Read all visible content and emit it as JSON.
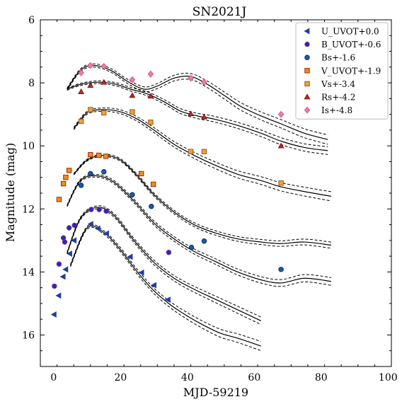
{
  "chart_data": {
    "type": "scatter",
    "title": "SN2021J",
    "xlabel": "MJD-59219",
    "ylabel": "Magnitude (mag)",
    "xlim": [
      -4,
      101
    ],
    "ylim": [
      17.0,
      6.0
    ],
    "y_inverted": true,
    "x_ticks": [
      0,
      20,
      40,
      60,
      80,
      100
    ],
    "y_ticks": [
      6,
      8,
      10,
      12,
      14,
      16
    ],
    "grid": false,
    "legend_position": "top-right",
    "series": [
      {
        "name": "U_UVOT+0.0",
        "marker": "triangle-left",
        "color": "#1f3f9f",
        "points": [
          [
            0.1,
            15.35
          ],
          [
            1.5,
            14.75
          ],
          [
            2.8,
            14.15
          ],
          [
            3.6,
            13.92
          ],
          [
            4.8,
            13.42
          ],
          [
            6.1,
            13.0
          ],
          [
            11.1,
            12.48
          ],
          [
            13.2,
            12.62
          ],
          [
            15.8,
            12.78
          ],
          [
            22.9,
            13.52
          ],
          [
            26.3,
            14.02
          ],
          [
            30.0,
            14.42
          ],
          [
            34.2,
            14.88
          ]
        ],
        "fit": {
          "x": [
            5,
            10,
            15,
            20,
            25,
            30,
            35,
            40,
            45,
            50,
            55,
            62
          ],
          "y": [
            13.8,
            12.6,
            12.75,
            13.3,
            14.0,
            14.6,
            15.05,
            15.4,
            15.7,
            15.95,
            16.1,
            16.35
          ],
          "band": 0.12
        }
      },
      {
        "name": "B_UVOT+-0.6",
        "marker": "circle",
        "color": "#2a2ab4",
        "edge": "#7a2a9a",
        "points": [
          [
            0.2,
            14.45
          ],
          [
            1.6,
            13.75
          ],
          [
            2.9,
            12.92
          ],
          [
            3.3,
            13.05
          ],
          [
            4.6,
            12.6
          ],
          [
            6.2,
            12.52
          ],
          [
            11.2,
            12.02
          ],
          [
            13.6,
            12.02
          ],
          [
            15.7,
            12.07
          ],
          [
            34.4,
            13.38
          ]
        ],
        "fit": {
          "x": [
            4,
            8,
            13,
            18,
            24,
            30,
            36,
            42,
            48,
            55,
            62
          ],
          "y": [
            13.4,
            12.3,
            11.95,
            12.2,
            13.0,
            13.7,
            14.2,
            14.55,
            14.85,
            15.2,
            15.55
          ],
          "band": 0.1
        }
      },
      {
        "name": "Bs+-1.6",
        "marker": "circle",
        "color": "#1d5aa8",
        "edge": "#0a2a60",
        "points": [
          [
            8.2,
            11.25
          ],
          [
            11.0,
            10.88
          ],
          [
            15.0,
            10.82
          ],
          [
            23.5,
            11.55
          ],
          [
            29.2,
            11.92
          ],
          [
            41.2,
            13.22
          ],
          [
            45.0,
            13.02
          ],
          [
            68.0,
            13.92
          ]
        ],
        "fit": {
          "x": [
            4,
            8,
            13,
            18,
            24,
            30,
            36,
            42,
            48,
            55,
            62,
            68,
            75,
            83
          ],
          "y": [
            11.9,
            11.1,
            10.95,
            11.15,
            11.75,
            12.45,
            12.95,
            13.35,
            13.65,
            14.0,
            14.25,
            14.35,
            14.2,
            14.3
          ],
          "band": 0.1
        }
      },
      {
        "name": "V_UVOT+-1.9",
        "marker": "square",
        "color": "#f08c1e",
        "edge": "#a02a00",
        "points": [
          [
            1.6,
            11.7
          ],
          [
            2.9,
            11.2
          ],
          [
            3.6,
            11.0
          ],
          [
            4.6,
            10.78
          ],
          [
            11.0,
            10.28
          ],
          [
            13.5,
            10.3
          ],
          [
            15.6,
            10.33
          ],
          [
            26.2,
            10.88
          ],
          [
            29.8,
            11.22
          ]
        ],
        "fit": {
          "x": [
            6,
            10,
            15,
            20,
            25,
            30,
            36,
            42,
            48,
            55,
            62,
            68,
            75,
            83
          ],
          "y": [
            10.9,
            10.45,
            10.3,
            10.45,
            10.95,
            11.55,
            12.1,
            12.5,
            12.75,
            12.95,
            13.05,
            13.1,
            13.05,
            13.15
          ],
          "band": 0.08
        }
      },
      {
        "name": "Vs+-3.4",
        "marker": "square",
        "color": "#f0a040",
        "edge": "#9a5a10",
        "points": [
          [
            8.2,
            9.22
          ],
          [
            11.0,
            8.85
          ],
          [
            15.0,
            8.95
          ],
          [
            23.5,
            8.92
          ],
          [
            29.0,
            9.25
          ],
          [
            41.0,
            10.18
          ],
          [
            45.0,
            10.18
          ],
          [
            68.0,
            11.18
          ]
        ],
        "fit": {
          "x": [
            6,
            10,
            15,
            20,
            25,
            30,
            36,
            42,
            48,
            55,
            62,
            68,
            75,
            83
          ],
          "y": [
            9.45,
            8.95,
            8.85,
            8.92,
            9.15,
            9.5,
            9.95,
            10.3,
            10.6,
            10.9,
            11.1,
            11.3,
            11.45,
            11.6
          ],
          "band": 0.12
        }
      },
      {
        "name": "Rs+-4.2",
        "marker": "triangle-up",
        "color": "#c02a2a",
        "edge": "#7a1010",
        "points": [
          [
            8.2,
            8.28
          ],
          [
            11.0,
            8.08
          ],
          [
            15.0,
            7.98
          ],
          [
            23.5,
            8.4
          ],
          [
            29.0,
            8.42
          ],
          [
            41.0,
            8.98
          ],
          [
            45.0,
            9.08
          ],
          [
            68.0,
            10.0
          ]
        ],
        "fit": {
          "x": [
            4,
            8,
            13,
            18,
            23,
            28,
            33,
            38,
            43,
            48,
            55,
            62,
            68,
            75,
            82
          ],
          "y": [
            8.2,
            8.05,
            7.98,
            8.03,
            8.2,
            8.35,
            8.6,
            8.9,
            9.05,
            9.15,
            9.35,
            9.6,
            9.85,
            10.05,
            10.15
          ],
          "band": 0.1
        }
      },
      {
        "name": "Is+-4.8",
        "marker": "diamond",
        "color": "#f07ea0",
        "edge": "#d05a80",
        "points": [
          [
            8.2,
            7.68
          ],
          [
            11.0,
            7.45
          ],
          [
            15.0,
            7.48
          ],
          [
            23.5,
            7.9
          ],
          [
            29.0,
            7.72
          ],
          [
            41.0,
            7.85
          ],
          [
            45.0,
            7.98
          ],
          [
            68.0,
            9.0
          ]
        ],
        "fit": {
          "x": [
            4,
            8,
            12,
            17,
            22,
            27,
            31,
            36,
            41,
            46,
            51,
            56,
            62,
            68,
            75,
            82
          ],
          "y": [
            8.2,
            7.6,
            7.45,
            7.6,
            7.95,
            8.2,
            8.1,
            7.85,
            7.8,
            8.05,
            8.4,
            8.75,
            9.05,
            9.3,
            9.6,
            9.8
          ],
          "band": 0.12
        }
      }
    ]
  }
}
